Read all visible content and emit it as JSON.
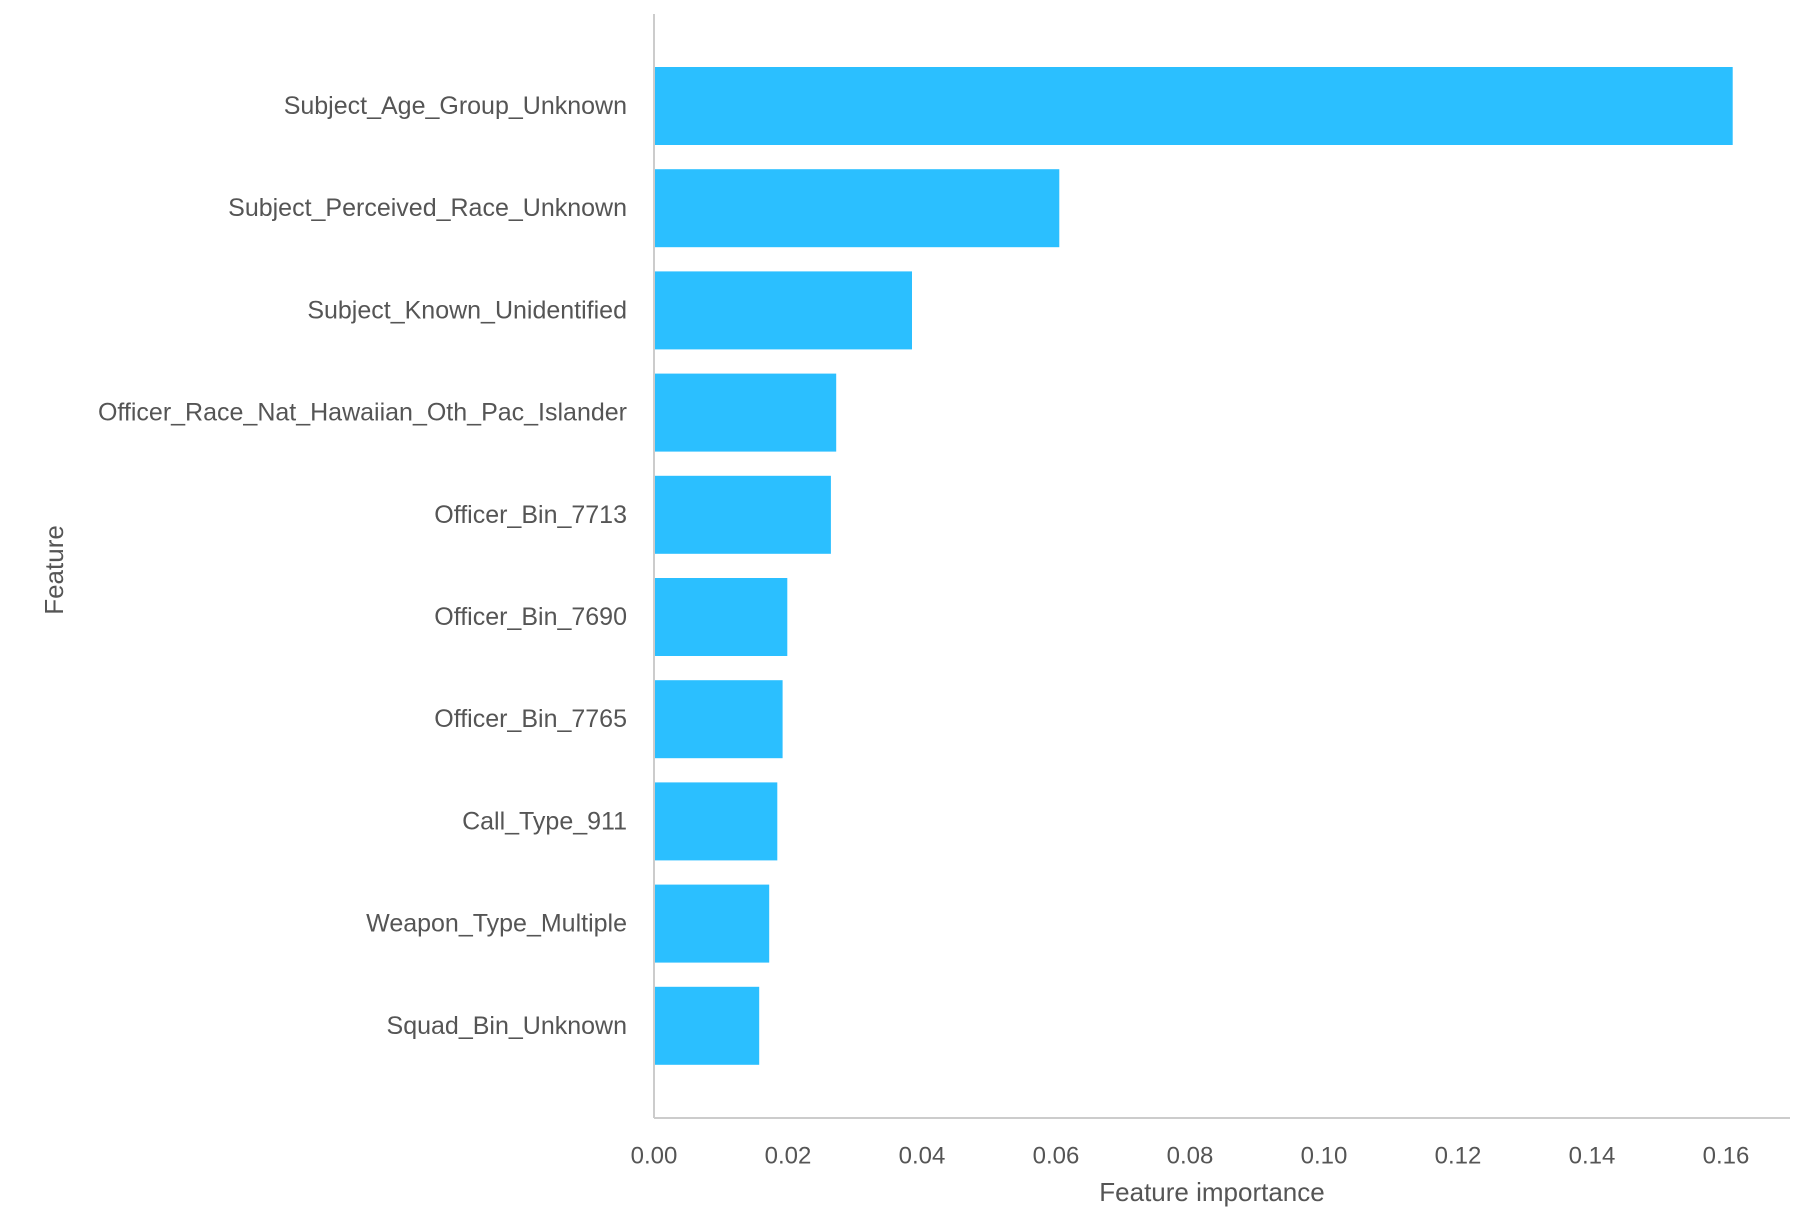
{
  "chart_data": {
    "type": "bar",
    "orientation": "horizontal",
    "title": "",
    "xlabel": "Feature importance",
    "ylabel": "Feature",
    "xlim": [
      0,
      0.17
    ],
    "xticks": [
      0.0,
      0.02,
      0.04,
      0.06,
      0.08,
      0.1,
      0.12,
      0.14,
      0.16
    ],
    "xtick_labels": [
      "0.00",
      "0.02",
      "0.04",
      "0.06",
      "0.08",
      "0.10",
      "0.12",
      "0.14",
      "0.16"
    ],
    "grid": false,
    "legend": "none",
    "categories": [
      "Subject_Age_Group_Unknown",
      "Subject_Perceived_Race_Unknown",
      "Subject_Known_Unidentified",
      "Officer_Race_Nat_Hawaiian_Oth_Pac_Islander",
      "Officer_Bin_7713",
      "Officer_Bin_7690",
      "Officer_Bin_7765",
      "Call_Type_911",
      "Weapon_Type_Multiple",
      "Squad_Bin_Unknown"
    ],
    "values": [
      0.161,
      0.0605,
      0.0385,
      0.0272,
      0.0264,
      0.0199,
      0.0192,
      0.0184,
      0.0172,
      0.0157
    ],
    "bar_color": "#2bbfff",
    "axis_color": "#cccccc",
    "text_color": "#555555"
  }
}
